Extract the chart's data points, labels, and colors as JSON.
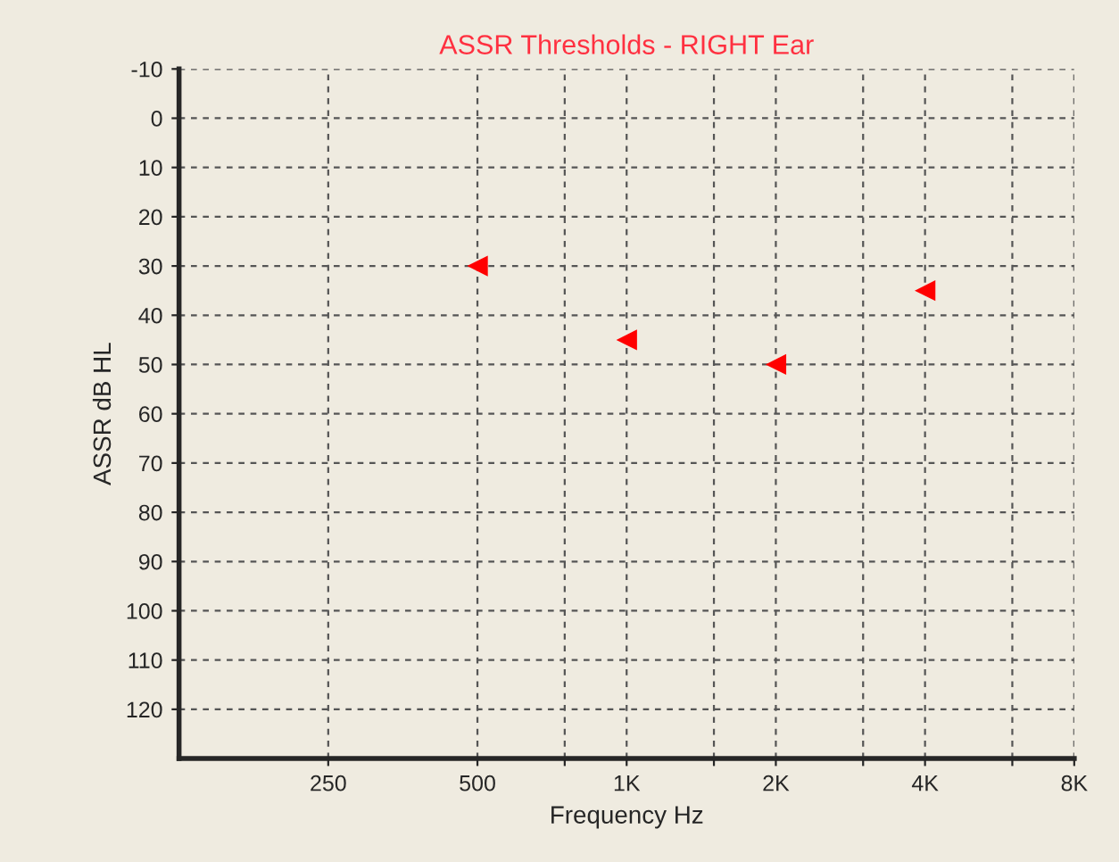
{
  "chart_data": {
    "type": "scatter",
    "title": "ASSR Thresholds - RIGHT Ear",
    "xlabel": "Frequency Hz",
    "ylabel": "ASSR dB HL",
    "x": [
      500,
      1000,
      2000,
      4000
    ],
    "series": [
      {
        "color": "#ff0000",
        "values": [
          30,
          45,
          50,
          35
        ]
      }
    ],
    "log": "x",
    "xlim": [
      125,
      8000
    ],
    "ylim": [
      130,
      -10
    ],
    "xticks": [
      {
        "value": 250,
        "label": "250"
      },
      {
        "value": 500,
        "label": "500"
      },
      {
        "value": 750,
        "label": null
      },
      {
        "value": 1000,
        "label": "1K"
      },
      {
        "value": 1500,
        "label": null
      },
      {
        "value": 2000,
        "label": "2K"
      },
      {
        "value": 3000,
        "label": null
      },
      {
        "value": 4000,
        "label": "4K"
      },
      {
        "value": 6000,
        "label": null
      },
      {
        "value": 8000,
        "label": "8K"
      }
    ],
    "yticks": [
      -10,
      0,
      10,
      20,
      30,
      40,
      50,
      60,
      70,
      80,
      90,
      100,
      110,
      120
    ],
    "grid": true,
    "marker": "triangle",
    "legend": false
  }
}
